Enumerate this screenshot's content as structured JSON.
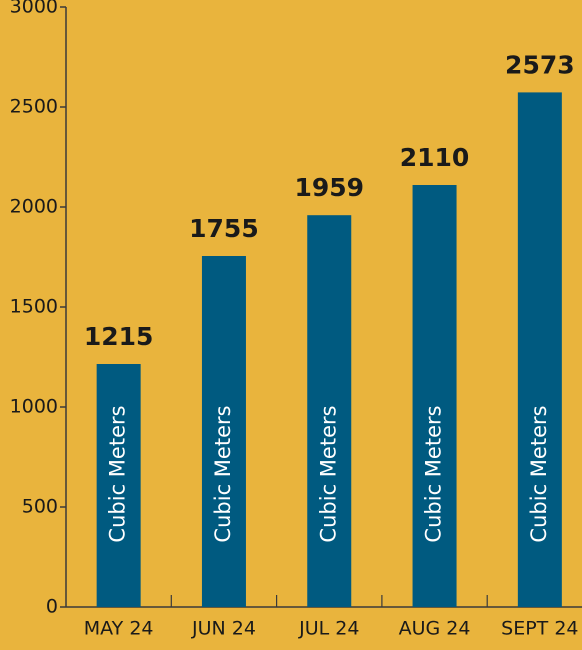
{
  "chart_data": {
    "type": "bar",
    "categories": [
      "MAY 24",
      "JUN 24",
      "JUL 24",
      "AUG 24",
      "SEPT 24"
    ],
    "values": [
      1215,
      1755,
      1959,
      2110,
      2573
    ],
    "bar_label": "Cubic Meters",
    "color": "#005a80",
    "ylim": [
      0,
      3000
    ],
    "yticks": [
      0,
      500,
      1000,
      1500,
      2000,
      2500,
      3000
    ]
  }
}
